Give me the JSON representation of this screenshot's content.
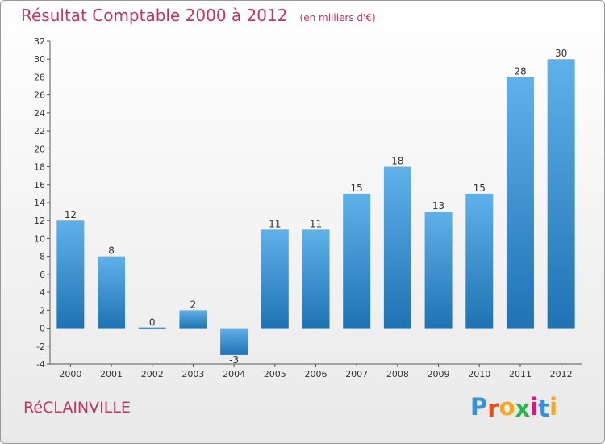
{
  "colors": {
    "title": "#c0365f",
    "bar_top": "#5fb1ea",
    "bar_bottom": "#1f73b3",
    "axis": "#555555",
    "grid_tick": "#555555"
  },
  "header": {
    "title": "Résultat Comptable 2000 à 2012",
    "unit": "(en milliers d'€)"
  },
  "footer": {
    "town": "RéCLAINVILLE",
    "logo_letters": [
      "P",
      "r",
      "o",
      "x",
      "i",
      "t",
      "i"
    ],
    "logo_colors": [
      "#3a8fd6",
      "#e94e1b",
      "#f5a623",
      "#2bb24c",
      "#e2137e",
      "#3a8fd6",
      "#f5a623"
    ]
  },
  "chart_data": {
    "type": "bar",
    "title": "Résultat Comptable 2000 à 2012",
    "ylabel": "en milliers d'€",
    "xlabel": "",
    "categories": [
      "2000",
      "2001",
      "2002",
      "2003",
      "2004",
      "2005",
      "2006",
      "2007",
      "2008",
      "2009",
      "2010",
      "2011",
      "2012"
    ],
    "values": [
      12,
      8,
      0,
      2,
      -3,
      11,
      11,
      15,
      18,
      13,
      15,
      28,
      30
    ],
    "value_labels": [
      "12",
      "8",
      "0",
      "2",
      "-3",
      "11",
      "11",
      "15",
      "18",
      "13",
      "15",
      "28",
      "30"
    ],
    "ylim": [
      -4,
      32
    ],
    "yticks": [
      -4,
      -2,
      0,
      2,
      4,
      6,
      8,
      10,
      12,
      14,
      16,
      18,
      20,
      22,
      24,
      26,
      28,
      30,
      32
    ],
    "ytick_labels": [
      "-4",
      "-2",
      "0",
      "2",
      "4",
      "6",
      "8",
      "10",
      "12",
      "14",
      "16",
      "18",
      "20",
      "22",
      "24",
      "26",
      "28",
      "30",
      "32"
    ],
    "grid": false
  }
}
